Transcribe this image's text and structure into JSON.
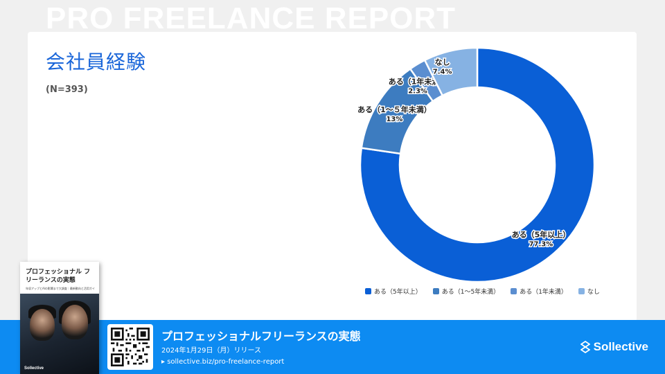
{
  "background_title": "PRO FREELANCE REPORT",
  "card": {
    "title": "会社員経験",
    "n_label": "(N=393)"
  },
  "chart_data": {
    "type": "pie",
    "donut": true,
    "categories": [
      "ある（5年以上）",
      "ある（1〜5年未満）",
      "ある（1年未満）",
      "なし"
    ],
    "values": [
      77.3,
      13,
      2.3,
      7.4
    ],
    "value_labels": [
      "77.3%",
      "13%",
      "2.3%",
      "7.4%"
    ],
    "slice_labels": [
      "ある（5年以上）",
      "ある（1〜５年未満）",
      "ある（1年未満）",
      "なし"
    ],
    "colors": [
      "#0a5fd6",
      "#3d7cc0",
      "#5b8ed0",
      "#86b2e3"
    ],
    "legend_position": "bottom"
  },
  "footer": {
    "title": "プロフェッショナルフリーランスの実態",
    "date": "2024年1月29日（月）リリース",
    "url": "▸ sollective.biz/pro-freelance-report",
    "brand": "Sollective"
  },
  "book": {
    "title": "プロフェッショナル フリーランスの実態",
    "subtitle": "年収アップとAIの影響まで大調査｜最新動向と活用ガイド",
    "brand": "Sollective"
  }
}
